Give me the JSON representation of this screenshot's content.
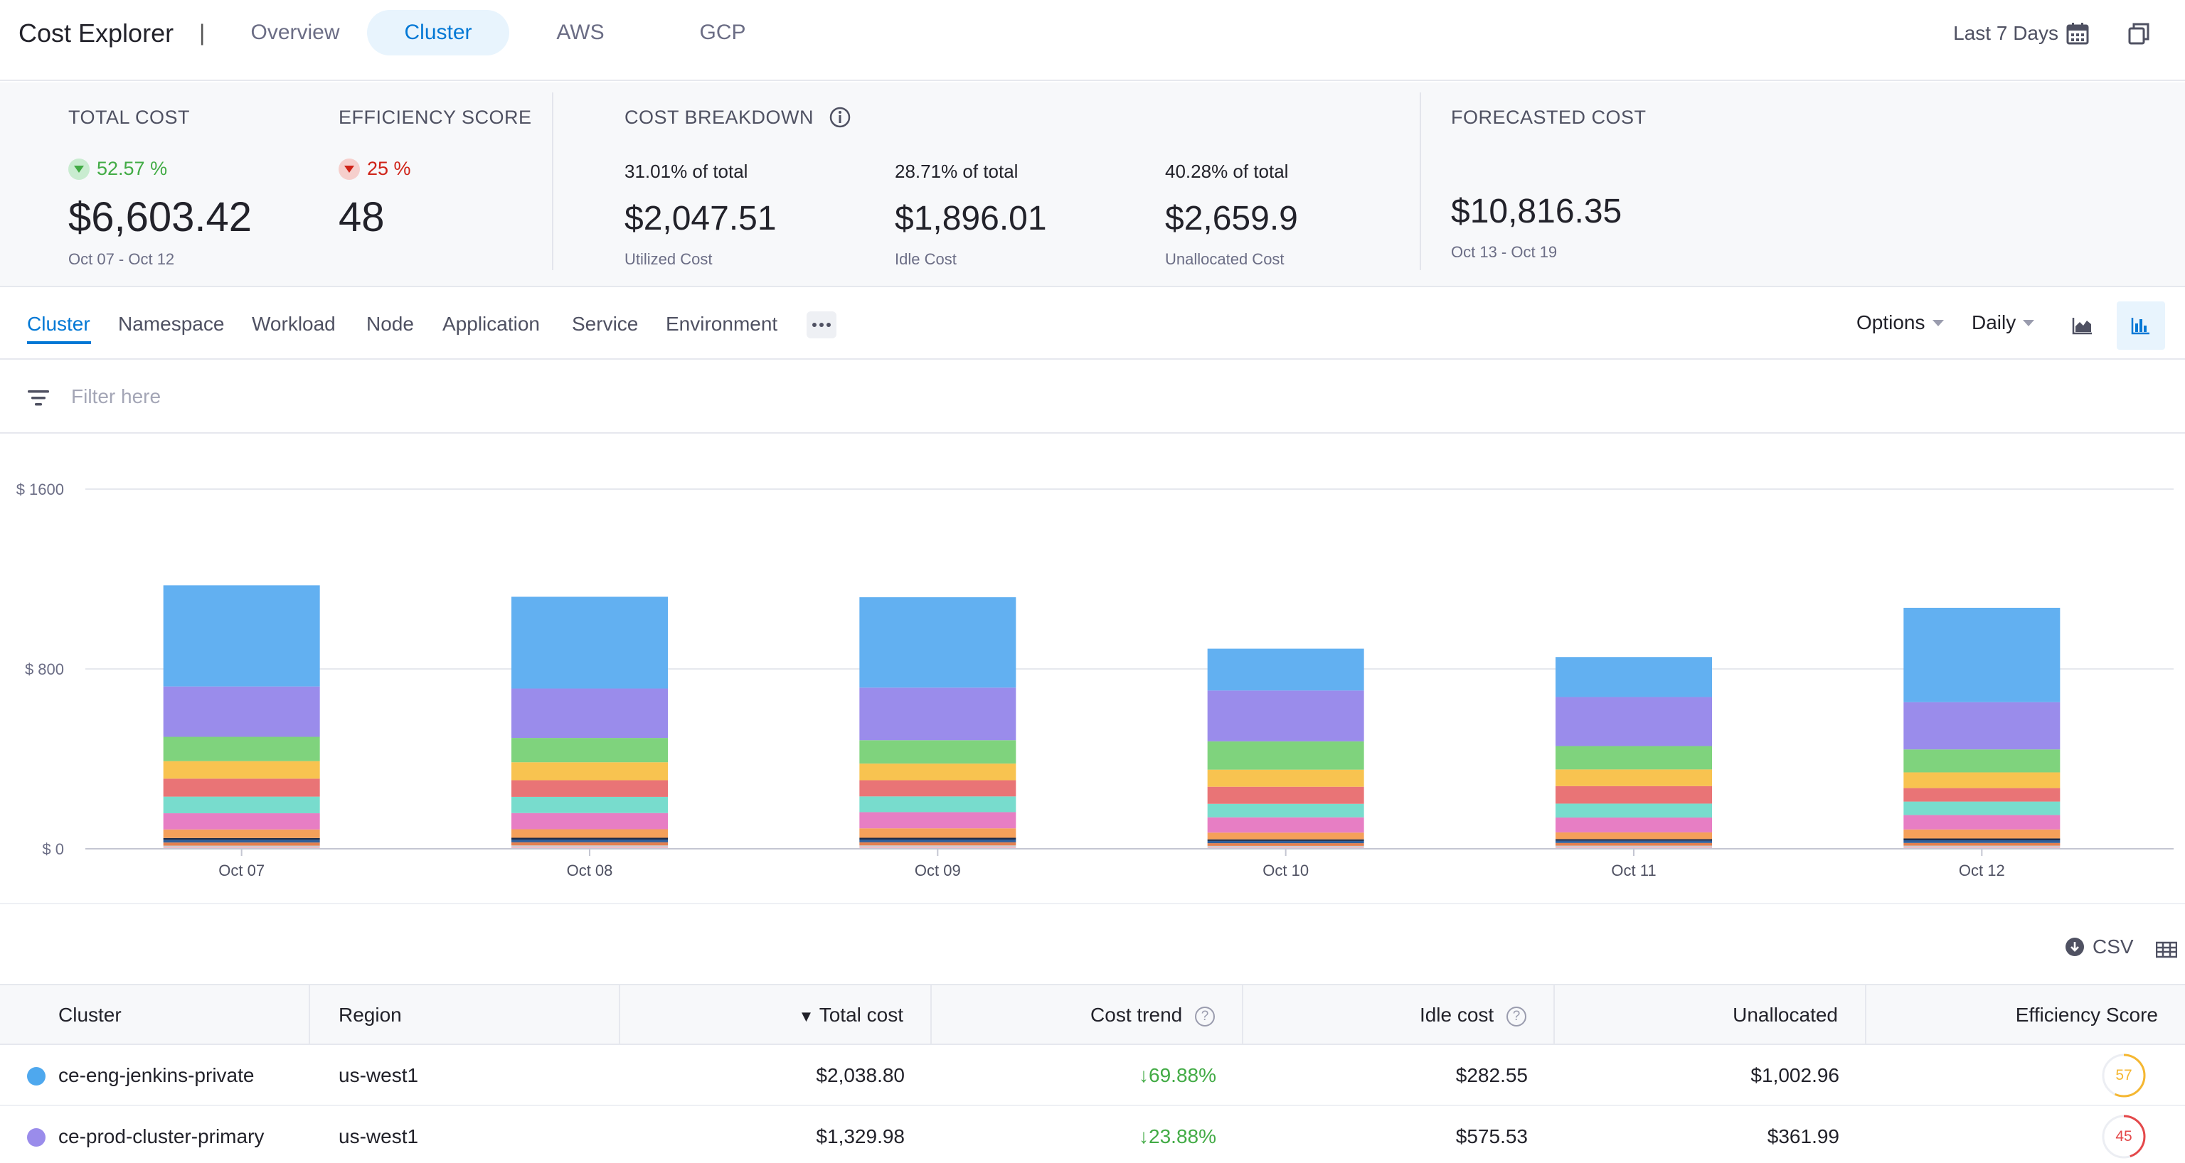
{
  "header": {
    "title": "Cost Explorer",
    "separator": "|",
    "tabs": [
      "Overview",
      "Cluster",
      "AWS",
      "GCP"
    ],
    "active_tab": "Cluster",
    "date_range": "Last 7 Days"
  },
  "summary": {
    "total_cost": {
      "label": "TOTAL COST",
      "change": "52.57 %",
      "value": "$6,603.42",
      "period": "Oct 07 - Oct 12"
    },
    "efficiency": {
      "label": "EFFICIENCY SCORE",
      "change": "25 %",
      "value": "48"
    },
    "breakdown": {
      "label": "COST BREAKDOWN",
      "items": [
        {
          "pct": "31.01% of total",
          "value": "$2,047.51",
          "caption": "Utilized Cost"
        },
        {
          "pct": "28.71% of total",
          "value": "$1,896.01",
          "caption": "Idle Cost"
        },
        {
          "pct": "40.28% of total",
          "value": "$2,659.9",
          "caption": "Unallocated Cost"
        }
      ]
    },
    "forecast": {
      "label": "FORECASTED COST",
      "value": "$10,816.35",
      "period": "Oct 13 - Oct 19"
    }
  },
  "group_tabs": [
    "Cluster",
    "Namespace",
    "Workload",
    "Node",
    "Application",
    "Service",
    "Environment"
  ],
  "active_group": "Cluster",
  "controls": {
    "options_label": "Options",
    "granularity_label": "Daily"
  },
  "filter": {
    "placeholder": "Filter here"
  },
  "colors": {
    "accent": "#0278d5",
    "segments": [
      "#f4b9c4",
      "#c8ccd4",
      "#e3804f",
      "#2f5f9a",
      "#1d2b4a",
      "#f5a05a",
      "#e77ec4",
      "#78dccd",
      "#e97476",
      "#f8c350",
      "#7fd37d",
      "#9a8ceb",
      "#62b0f1"
    ]
  },
  "chart_data": {
    "type": "bar",
    "stacked": true,
    "categories": [
      "Oct 07",
      "Oct 08",
      "Oct 09",
      "Oct 10",
      "Oct 11",
      "Oct 12"
    ],
    "y_ticks": [
      "$ 0",
      "$ 800",
      "$ 1600"
    ],
    "ylim": [
      0,
      1600
    ],
    "grid": true,
    "segments": [
      [
        8,
        9,
        9,
        7,
        8,
        8
      ],
      [
        6,
        6,
        6,
        6,
        6,
        6
      ],
      [
        14,
        14,
        14,
        12,
        12,
        12
      ],
      [
        12,
        12,
        12,
        10,
        10,
        12
      ],
      [
        8,
        8,
        8,
        7,
        7,
        8
      ],
      [
        38,
        38,
        42,
        30,
        30,
        40
      ],
      [
        72,
        72,
        72,
        68,
        66,
        64
      ],
      [
        74,
        72,
        70,
        60,
        62,
        60
      ],
      [
        80,
        74,
        72,
        76,
        78,
        60
      ],
      [
        78,
        80,
        74,
        76,
        74,
        70
      ],
      [
        108,
        108,
        104,
        126,
        104,
        102
      ],
      [
        224,
        220,
        234,
        226,
        218,
        210
      ],
      [
        450,
        408,
        402,
        186,
        178,
        420
      ]
    ]
  },
  "csv_label": "CSV",
  "table": {
    "columns": [
      "Cluster",
      "Region",
      "Total cost",
      "Cost trend",
      "Idle cost",
      "Unallocated",
      "Efficiency Score"
    ],
    "sort_indicator": "▼",
    "rows": [
      {
        "cluster": "ce-eng-jenkins-private",
        "region": "us-west1",
        "total": "$2,038.80",
        "trend": "↓69.88%",
        "idle": "$282.55",
        "unallocated": "$1,002.96",
        "score": "57",
        "score_value": 57,
        "dot": "#4ea8ee",
        "ring": "#f5b731"
      },
      {
        "cluster": "ce-prod-cluster-primary",
        "region": "us-west1",
        "total": "$1,329.98",
        "trend": "↓23.88%",
        "idle": "$575.53",
        "unallocated": "$361.99",
        "score": "45",
        "score_value": 45,
        "dot": "#9a8ceb",
        "ring": "#e4484a"
      }
    ]
  }
}
